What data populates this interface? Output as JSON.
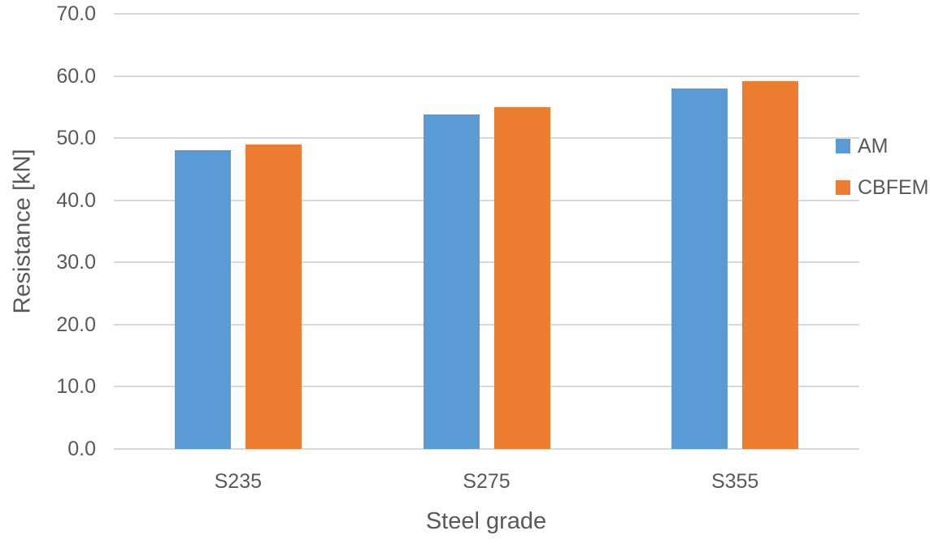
{
  "chart_data": {
    "type": "bar",
    "title": "",
    "categories": [
      "S235",
      "S275",
      "S355"
    ],
    "series": [
      {
        "name": "AM",
        "color": "#5B9BD5",
        "values": [
          48.0,
          53.8,
          58.0
        ]
      },
      {
        "name": "CBFEM",
        "color": "#ED7D31",
        "values": [
          49.0,
          55.0,
          59.2
        ]
      }
    ],
    "xlabel": "Steel grade",
    "ylabel": "Resistance [kN]",
    "ylim": [
      0,
      70
    ],
    "ytick_step": 10,
    "ytick_labels": [
      "0.0",
      "10.0",
      "20.0",
      "30.0",
      "40.0",
      "50.0",
      "60.0",
      "70.0"
    ],
    "grid": true,
    "legend_position": "right",
    "colors": {
      "text": "#595959",
      "gridline": "#D9D9D9",
      "background": "#FFFFFF"
    }
  }
}
